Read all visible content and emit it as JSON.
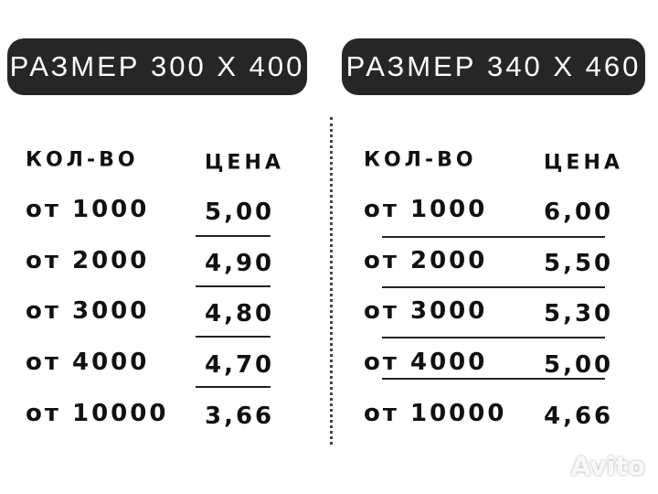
{
  "tables": [
    {
      "title": "РАЗМЕР 300 Х 400",
      "headers": [
        "КОЛ-ВО",
        "ЦЕНА"
      ],
      "rows": [
        [
          "от 1000",
          "5,00"
        ],
        [
          "от 2000",
          "4,90"
        ],
        [
          "от 3000",
          "4,80"
        ],
        [
          "от 4000",
          "4,70"
        ],
        [
          "от 10000",
          "3,66"
        ]
      ]
    },
    {
      "title": "РАЗМЕР 340 Х 460",
      "headers": [
        "КОЛ-ВО",
        "ЦЕНА"
      ],
      "rows": [
        [
          "от 1000",
          "6,00"
        ],
        [
          "от 2000",
          "5,50"
        ],
        [
          "от 3000",
          "5,30"
        ],
        [
          "от 4000",
          "5,00"
        ],
        [
          "от 10000",
          "4,66"
        ]
      ]
    }
  ],
  "watermark": "Avito"
}
